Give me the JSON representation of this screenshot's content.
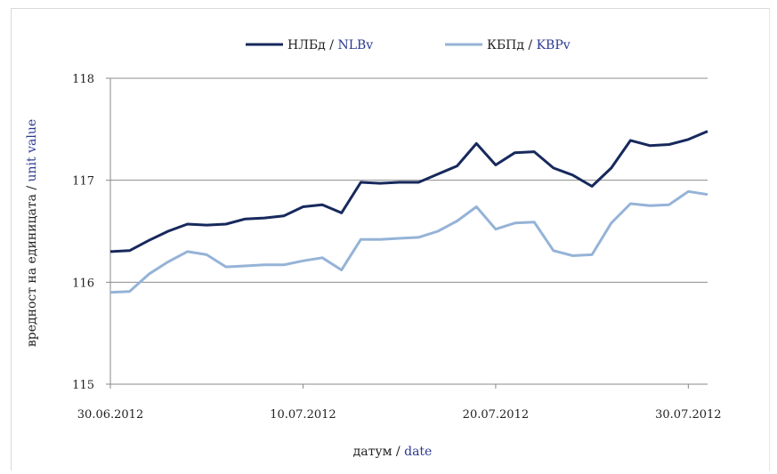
{
  "chart_data": {
    "type": "line",
    "x": [
      "30.06.2012",
      "01.07.2012",
      "02.07.2012",
      "03.07.2012",
      "04.07.2012",
      "05.07.2012",
      "06.07.2012",
      "07.07.2012",
      "08.07.2012",
      "09.07.2012",
      "10.07.2012",
      "11.07.2012",
      "12.07.2012",
      "13.07.2012",
      "14.07.2012",
      "15.07.2012",
      "16.07.2012",
      "17.07.2012",
      "18.07.2012",
      "19.07.2012",
      "20.07.2012",
      "21.07.2012",
      "22.07.2012",
      "23.07.2012",
      "24.07.2012",
      "25.07.2012",
      "26.07.2012",
      "27.07.2012",
      "28.07.2012",
      "29.07.2012",
      "30.07.2012",
      "31.07.2012"
    ],
    "x_ticks": [
      "30.06.2012",
      "10.07.2012",
      "20.07.2012",
      "30.07.2012"
    ],
    "series": [
      {
        "name": "НЛБд",
        "name_en": "NLBv",
        "color": "#17295c",
        "values": [
          116.3,
          116.31,
          116.41,
          116.5,
          116.57,
          116.56,
          116.57,
          116.62,
          116.63,
          116.65,
          116.74,
          116.76,
          116.68,
          116.98,
          116.97,
          116.98,
          116.98,
          117.06,
          117.14,
          117.36,
          117.15,
          117.27,
          117.28,
          117.12,
          117.05,
          116.94,
          117.12,
          117.39,
          117.34,
          117.35,
          117.4,
          117.48
        ]
      },
      {
        "name": "КБПд",
        "name_en": "KBPv",
        "color": "#95b3d7",
        "values": [
          115.9,
          115.91,
          116.08,
          116.2,
          116.3,
          116.27,
          116.15,
          116.16,
          116.17,
          116.17,
          116.21,
          116.24,
          116.12,
          116.42,
          116.42,
          116.43,
          116.44,
          116.5,
          116.6,
          116.74,
          116.52,
          116.58,
          116.59,
          116.31,
          116.26,
          116.27,
          116.58,
          116.77,
          116.75,
          116.76,
          116.89,
          116.86
        ]
      }
    ],
    "ylim": [
      115,
      118
    ],
    "y_ticks": [
      "115",
      "116",
      "117",
      "118"
    ],
    "grid": true,
    "xlabel": "датум",
    "xlabel_en": "date",
    "ylabel": "вредност на единицата",
    "ylabel_en": "unit value",
    "legend": "top",
    "separator": " / "
  }
}
